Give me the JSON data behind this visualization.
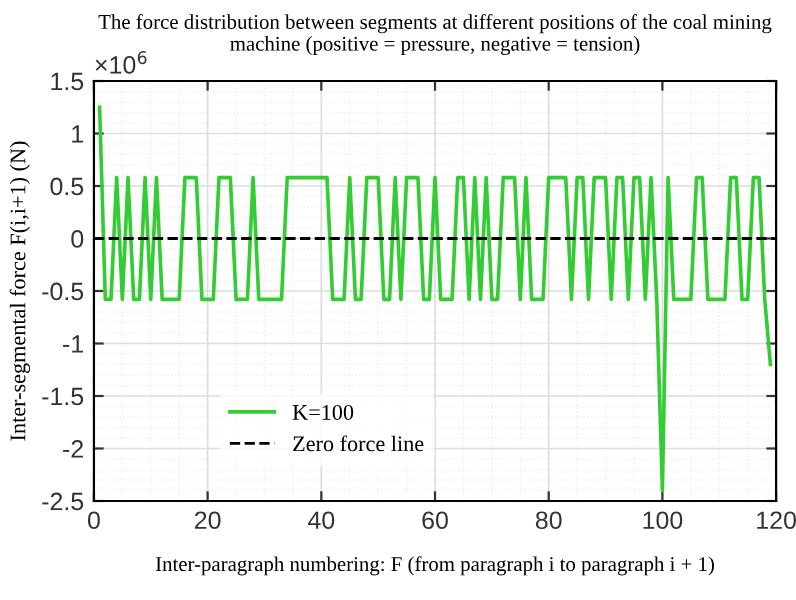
{
  "chart_data": {
    "type": "line",
    "title": "The force distribution between segments at different positions of the coal mining machine (positive = pressure, negative = tension)",
    "xlabel": "Inter-paragraph numbering: F (from paragraph i to paragraph i + 1)",
    "ylabel": "Inter-segmental force F(i,i+1) (N)",
    "annotations": [
      "×10$^{6}$"
    ],
    "x": [
      1,
      2,
      3,
      4,
      5,
      6,
      7,
      8,
      9,
      10,
      11,
      12,
      13,
      14,
      15,
      16,
      17,
      18,
      19,
      20,
      21,
      22,
      23,
      24,
      25,
      26,
      27,
      28,
      29,
      30,
      31,
      32,
      33,
      34,
      35,
      36,
      37,
      38,
      39,
      40,
      41,
      42,
      43,
      44,
      45,
      46,
      47,
      48,
      49,
      50,
      51,
      52,
      53,
      54,
      55,
      56,
      57,
      58,
      59,
      60,
      61,
      62,
      63,
      64,
      65,
      66,
      67,
      68,
      69,
      70,
      71,
      72,
      73,
      74,
      75,
      76,
      77,
      78,
      79,
      80,
      81,
      82,
      83,
      84,
      85,
      86,
      87,
      88,
      89,
      90,
      91,
      92,
      93,
      94,
      95,
      96,
      97,
      98,
      99,
      100,
      101,
      102,
      103,
      104,
      105,
      106,
      107,
      108,
      109,
      110,
      111,
      112,
      113,
      114,
      115,
      116,
      117,
      118,
      119
    ],
    "series": [
      {
        "name": "K=100",
        "color": "#33cc33",
        "values": [
          1.25,
          -0.58,
          -0.58,
          0.58,
          -0.58,
          0.58,
          -0.58,
          -0.58,
          0.58,
          -0.58,
          0.58,
          -0.58,
          -0.58,
          -0.58,
          -0.58,
          0.58,
          0.58,
          0.58,
          -0.58,
          -0.58,
          -0.58,
          0.58,
          0.58,
          0.58,
          -0.58,
          -0.58,
          -0.58,
          0.58,
          -0.58,
          -0.58,
          -0.58,
          -0.58,
          -0.58,
          0.58,
          0.58,
          0.58,
          0.58,
          0.58,
          0.58,
          0.58,
          0.58,
          -0.58,
          -0.58,
          -0.58,
          0.58,
          -0.58,
          -0.58,
          0.58,
          0.58,
          0.58,
          -0.58,
          -0.58,
          0.58,
          -0.58,
          0.58,
          0.58,
          0.58,
          -0.58,
          -0.58,
          0.58,
          -0.58,
          -0.58,
          -0.58,
          0.58,
          0.58,
          -0.58,
          0.58,
          -0.58,
          0.58,
          -0.58,
          -0.58,
          0.58,
          0.58,
          0.58,
          -0.58,
          0.58,
          -0.58,
          -0.58,
          -0.58,
          0.58,
          0.58,
          0.58,
          0.58,
          -0.58,
          0.58,
          0.58,
          -0.58,
          0.58,
          0.58,
          0.58,
          -0.58,
          0.58,
          0.58,
          -0.58,
          0.58,
          0.58,
          -0.58,
          0.58,
          -0.58,
          -2.4,
          0.58,
          -0.58,
          -0.58,
          -0.58,
          -0.58,
          0.58,
          0.58,
          -0.58,
          -0.58,
          -0.58,
          -0.58,
          0.58,
          0.58,
          -0.58,
          -0.58,
          0.58,
          0.58,
          -0.58,
          -1.2
        ]
      }
    ],
    "ref_lines": [
      {
        "axis": "y",
        "value": 0,
        "label": "Zero force line",
        "color": "#000000",
        "line_style": "dashed"
      }
    ],
    "xlim": [
      0,
      120
    ],
    "xticks": [
      0,
      20,
      40,
      60,
      80,
      100,
      120
    ],
    "ylim": [
      -2.5,
      1.5
    ],
    "yticks": [
      -2.5,
      -2,
      -1.5,
      -1,
      -0.5,
      0,
      0.5,
      1,
      1.5
    ],
    "grid": true,
    "legend": "bottom left"
  }
}
